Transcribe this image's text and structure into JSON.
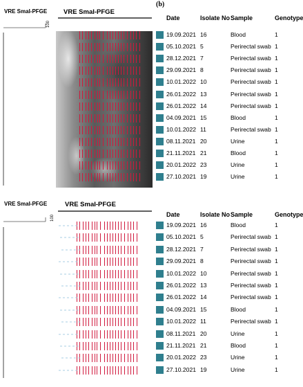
{
  "panel_letter": "(b)",
  "left_title": "VRE SmaI-PFGE",
  "gel_title": "VRE SmaI-PFGE",
  "scale_label": "100",
  "headers": {
    "date": "Date",
    "isolate": "Isolate No",
    "sample": "Sample",
    "genotype": "Genotype"
  },
  "square_color": "#2f7f8e",
  "band_color": "#d0183c",
  "rows": [
    {
      "date": "19.09.2021",
      "isolate": "16",
      "sample": "Blood",
      "genotype": "1"
    },
    {
      "date": "05.10.2021",
      "isolate": "5",
      "sample": "Perirectal swab",
      "genotype": "1"
    },
    {
      "date": "28.12.2021",
      "isolate": "7",
      "sample": "Perirectal swab",
      "genotype": "1"
    },
    {
      "date": "29.09.2021",
      "isolate": "8",
      "sample": "Perirectal swab",
      "genotype": "1"
    },
    {
      "date": "10.01.2022",
      "isolate": "10",
      "sample": "Perirectal swab",
      "genotype": "1"
    },
    {
      "date": "26.01.2022",
      "isolate": "13",
      "sample": "Perirectal swab",
      "genotype": "1"
    },
    {
      "date": "26.01.2022",
      "isolate": "14",
      "sample": "Perirectal swab",
      "genotype": "1"
    },
    {
      "date": "04.09.2021",
      "isolate": "15",
      "sample": "Blood",
      "genotype": "1"
    },
    {
      "date": "10.01.2022",
      "isolate": "11",
      "sample": "Perirectal swab",
      "genotype": "1"
    },
    {
      "date": "08.11.2021",
      "isolate": "20",
      "sample": "Urine",
      "genotype": "1"
    },
    {
      "date": "21.11.2021",
      "isolate": "21",
      "sample": "Blood",
      "genotype": "1"
    },
    {
      "date": "20.01.2022",
      "isolate": "23",
      "sample": "Urine",
      "genotype": "1"
    },
    {
      "date": "27.10.2021",
      "isolate": "19",
      "sample": "Urine",
      "genotype": "1"
    }
  ]
}
